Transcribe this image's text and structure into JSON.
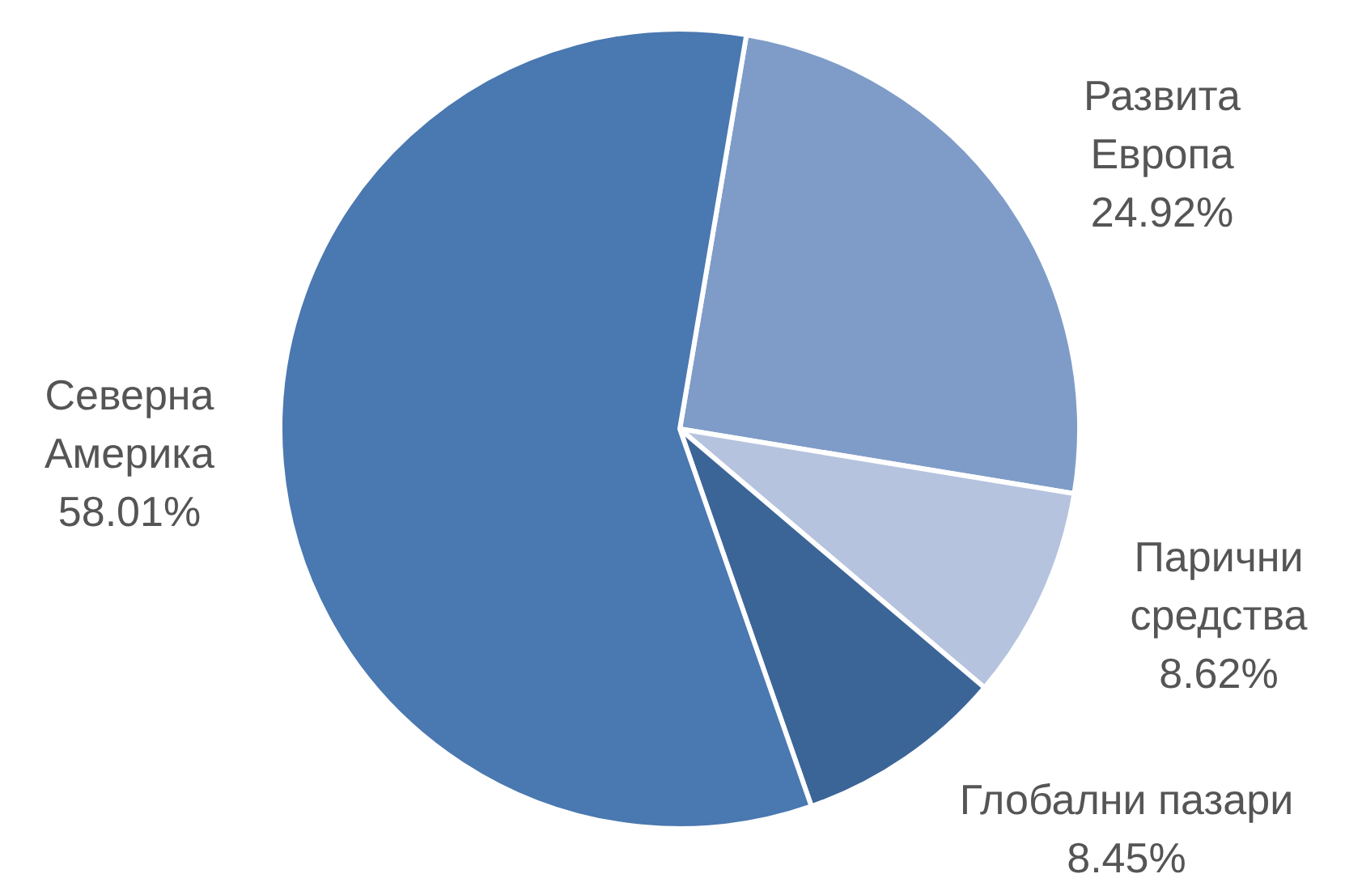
{
  "chart_data": {
    "type": "pie",
    "categories": [
      "Развита Европа",
      "Парични средства",
      "Глобални пазари",
      "Северна Америка"
    ],
    "values": [
      24.92,
      8.62,
      8.45,
      58.01
    ],
    "value_labels": [
      "24.92%",
      "8.62%",
      "8.45%",
      "58.01%"
    ],
    "colors": [
      "#7f9cc8",
      "#b5c3de",
      "#3c6597",
      "#4a78b0"
    ]
  }
}
